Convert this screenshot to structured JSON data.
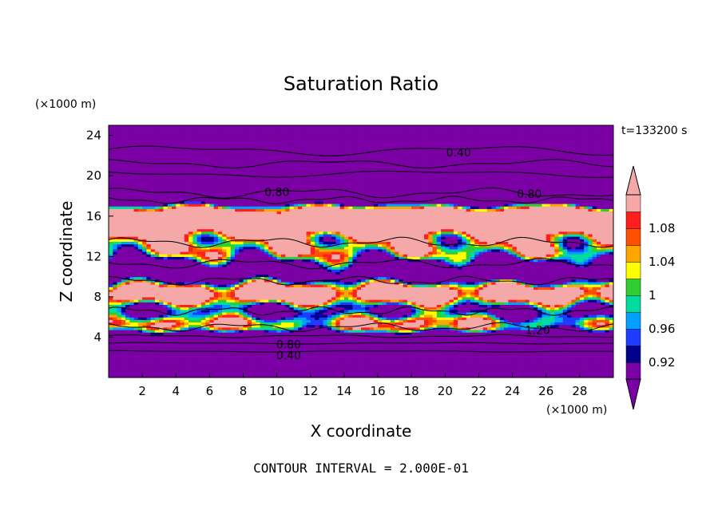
{
  "chart_data": {
    "type": "heatmap",
    "title": "Saturation Ratio",
    "xlabel": "X coordinate",
    "ylabel": "Z coordinate",
    "x_unit": "(×1000 m)",
    "y_unit": "(×1000 m)",
    "time_label": "t=133200 s",
    "footer": "CONTOUR INTERVAL = 2.000E-01",
    "xlim": [
      0,
      30
    ],
    "ylim": [
      0,
      25
    ],
    "x_ticks": [
      2,
      4,
      6,
      8,
      10,
      12,
      14,
      16,
      18,
      20,
      22,
      24,
      26,
      28
    ],
    "y_ticks": [
      4,
      8,
      12,
      16,
      20,
      24
    ],
    "colorbar": {
      "levels": [
        0.9,
        0.92,
        0.94,
        0.96,
        0.98,
        1.0,
        1.02,
        1.04,
        1.06,
        1.08,
        1.1
      ],
      "tick_labels": [
        "0.92",
        "0.96",
        "1",
        "1.04",
        "1.08"
      ],
      "tick_values": [
        0.92,
        0.96,
        1.0,
        1.04,
        1.08
      ],
      "colors": [
        "#7b00a5",
        "#00008b",
        "#1e3cff",
        "#00a0ff",
        "#00dca0",
        "#32cd32",
        "#ffff00",
        "#ffa500",
        "#ff5000",
        "#ff1e1e",
        "#f4a8a8"
      ],
      "triangle_low_color": "#7b00a5",
      "triangle_high_color": "#f4a8a8"
    },
    "contour_labels": [
      {
        "text": "0.40",
        "x": 20.8,
        "y": 22.3
      },
      {
        "text": "0.80",
        "x": 10.0,
        "y": 18.4
      },
      {
        "text": "0.80",
        "x": 25.0,
        "y": 18.2
      },
      {
        "text": "1.20",
        "x": 25.5,
        "y": 4.7
      },
      {
        "text": "0.80",
        "x": 10.7,
        "y": 3.3
      },
      {
        "text": "0.40",
        "x": 10.7,
        "y": 2.2
      }
    ]
  }
}
